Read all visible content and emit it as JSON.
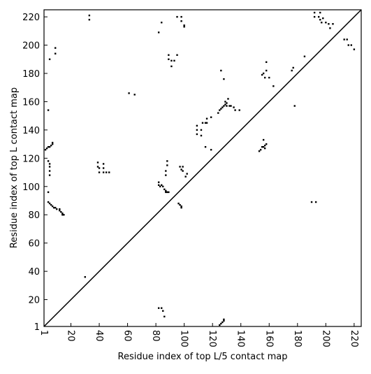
{
  "chart_data": {
    "type": "scatter",
    "x_label": "Residue index of top L/5 contact map",
    "y_label": "Residue index of top L contact map",
    "xlim": [
      1,
      225
    ],
    "ylim": [
      1,
      225
    ],
    "xticks": [
      1,
      20,
      40,
      60,
      80,
      100,
      120,
      140,
      160,
      180,
      200,
      220
    ],
    "yticks": [
      1,
      20,
      40,
      60,
      80,
      100,
      120,
      140,
      160,
      180,
      200,
      220
    ],
    "diagonal": true,
    "series": [
      {
        "color": "#000000",
        "x": [
          33,
          33,
          84,
          95,
          98,
          98,
          100,
          100,
          82,
          89,
          89,
          91,
          93,
          95,
          91,
          5,
          9,
          9,
          61,
          65,
          4,
          2,
          3,
          4,
          5,
          6,
          7,
          7,
          4,
          5,
          5,
          5,
          5,
          39,
          39,
          40,
          40,
          43,
          43,
          43,
          45,
          47,
          88,
          88,
          87,
          87,
          97,
          98,
          99,
          99,
          102,
          101,
          82,
          82,
          83,
          84,
          85,
          86,
          87,
          87,
          88,
          89,
          96,
          97,
          98,
          98,
          4,
          4,
          5,
          6,
          7,
          8,
          9,
          10,
          12,
          12,
          13,
          14,
          15,
          14,
          30,
          109,
          109,
          109,
          112,
          112,
          113,
          115,
          116,
          116,
          119,
          115,
          119,
          124,
          125,
          126,
          127,
          128,
          129,
          130,
          130,
          129,
          131,
          132,
          133,
          135,
          136,
          139,
          126,
          128,
          153,
          154,
          155,
          156,
          157,
          157,
          158,
          156,
          155,
          156,
          157,
          158,
          158,
          160,
          163,
          176,
          177,
          178,
          185,
          190,
          193,
          192,
          192,
          195,
          196,
          196,
          197,
          198,
          200,
          202,
          203,
          205,
          213,
          215,
          216,
          218,
          220,
          82,
          84,
          85,
          86,
          125,
          126,
          127,
          128,
          128
        ],
        "y": [
          221,
          218,
          216,
          220,
          220,
          217,
          213,
          214,
          209,
          193,
          190,
          189,
          189,
          193,
          185,
          190,
          198,
          194,
          166,
          165,
          154,
          126,
          127,
          128,
          128,
          129,
          130,
          131,
          118,
          116,
          114,
          111,
          108,
          117,
          114,
          113,
          110,
          116,
          113,
          110,
          110,
          110,
          118,
          115,
          111,
          108,
          114,
          112,
          114,
          111,
          109,
          107,
          103,
          101,
          100,
          101,
          100,
          98,
          97,
          96,
          96,
          96,
          88,
          87,
          86,
          85,
          96,
          89,
          88,
          87,
          86,
          85,
          85,
          84,
          84,
          83,
          82,
          81,
          80,
          80,
          36,
          143,
          140,
          137,
          140,
          136,
          145,
          145,
          148,
          145,
          149,
          128,
          126,
          152,
          154,
          155,
          156,
          157,
          158,
          159,
          157,
          160,
          162,
          157,
          157,
          156,
          154,
          154,
          182,
          176,
          125,
          126,
          128,
          128,
          129,
          127,
          130,
          133,
          179,
          180,
          177,
          182,
          188,
          177,
          171,
          182,
          184,
          157,
          192,
          89,
          89,
          223,
          220,
          220,
          223,
          218,
          216,
          219,
          216,
          215,
          212,
          215,
          204,
          204,
          200,
          200,
          197,
          14,
          14,
          12,
          8,
          2,
          3,
          4,
          5,
          6
        ]
      }
    ]
  }
}
